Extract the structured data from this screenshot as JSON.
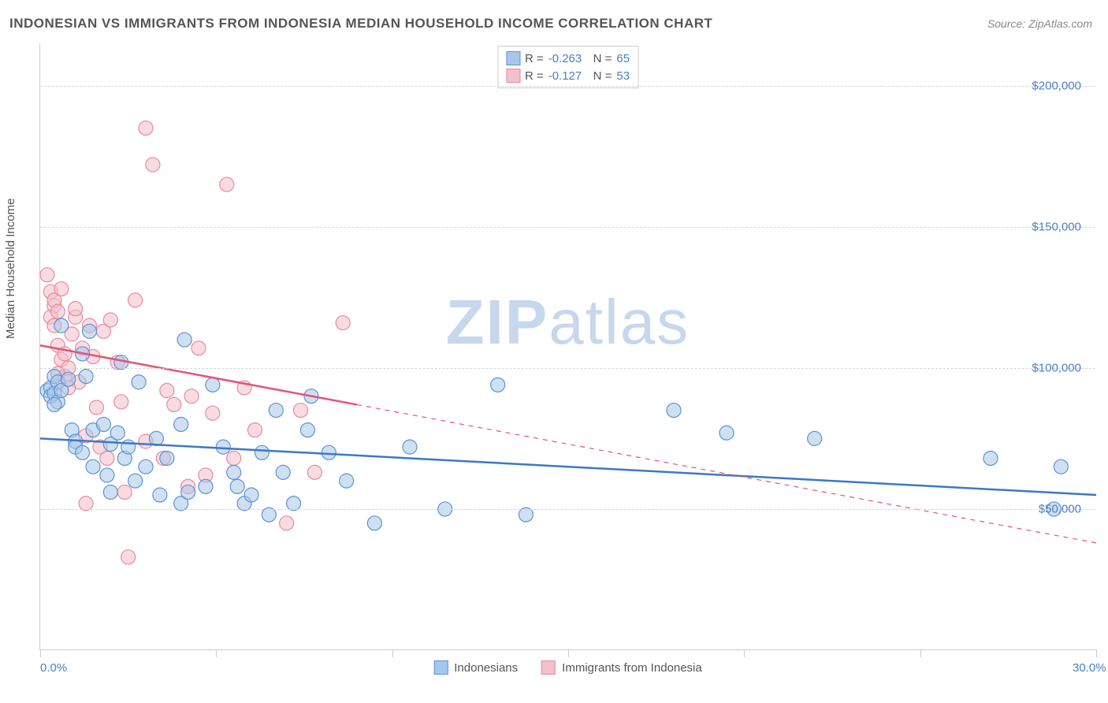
{
  "title": "INDONESIAN VS IMMIGRANTS FROM INDONESIA MEDIAN HOUSEHOLD INCOME CORRELATION CHART",
  "source": "Source: ZipAtlas.com",
  "y_axis_label": "Median Household Income",
  "watermark_a": "ZIP",
  "watermark_b": "atlas",
  "chart": {
    "type": "scatter",
    "xlim": [
      0,
      30
    ],
    "ylim": [
      0,
      215000
    ],
    "x_ticks": [
      0,
      5,
      10,
      15,
      20,
      25,
      30
    ],
    "x_tick_labels": {
      "0": "0.0%",
      "30": "30.0%"
    },
    "y_gridlines": [
      50000,
      100000,
      150000,
      200000
    ],
    "y_tick_labels": {
      "50000": "$50,000",
      "100000": "$100,000",
      "150000": "$150,000",
      "200000": "$200,000"
    },
    "background_color": "#ffffff",
    "grid_color": "#d5d5d5",
    "axis_color": "#cccccc",
    "tick_label_color": "#4a7ec9",
    "title_color": "#555555",
    "marker_radius": 9,
    "marker_stroke_width": 1.2,
    "marker_opacity": 0.55,
    "line_width": 2.5
  },
  "series": [
    {
      "name": "Indonesians",
      "label": "Indonesians",
      "fill": "#a7c7ea",
      "stroke": "#5c93d6",
      "line_color": "#3b78c9",
      "R": "-0.263",
      "N": "65",
      "trend": {
        "x1": 0,
        "y1": 75000,
        "x2": 30,
        "y2": 55000,
        "solid_until_x": 30
      },
      "points": [
        [
          0.2,
          92000
        ],
        [
          0.3,
          93000
        ],
        [
          0.4,
          97000
        ],
        [
          0.3,
          90000
        ],
        [
          0.4,
          91000
        ],
        [
          0.5,
          88000
        ],
        [
          0.5,
          95000
        ],
        [
          0.6,
          92000
        ],
        [
          0.4,
          87000
        ],
        [
          0.8,
          96000
        ],
        [
          0.6,
          115000
        ],
        [
          0.9,
          78000
        ],
        [
          1.0,
          74000
        ],
        [
          1.0,
          72000
        ],
        [
          1.2,
          70000
        ],
        [
          1.2,
          105000
        ],
        [
          1.3,
          97000
        ],
        [
          1.4,
          113000
        ],
        [
          1.5,
          65000
        ],
        [
          1.5,
          78000
        ],
        [
          1.8,
          80000
        ],
        [
          1.9,
          62000
        ],
        [
          2.0,
          73000
        ],
        [
          2.0,
          56000
        ],
        [
          2.2,
          77000
        ],
        [
          2.3,
          102000
        ],
        [
          2.4,
          68000
        ],
        [
          2.5,
          72000
        ],
        [
          2.7,
          60000
        ],
        [
          2.8,
          95000
        ],
        [
          3.0,
          65000
        ],
        [
          3.3,
          75000
        ],
        [
          3.4,
          55000
        ],
        [
          3.6,
          68000
        ],
        [
          4.0,
          80000
        ],
        [
          4.0,
          52000
        ],
        [
          4.1,
          110000
        ],
        [
          4.2,
          56000
        ],
        [
          4.7,
          58000
        ],
        [
          4.9,
          94000
        ],
        [
          5.2,
          72000
        ],
        [
          5.5,
          63000
        ],
        [
          5.6,
          58000
        ],
        [
          5.8,
          52000
        ],
        [
          6.0,
          55000
        ],
        [
          6.3,
          70000
        ],
        [
          6.5,
          48000
        ],
        [
          6.7,
          85000
        ],
        [
          6.9,
          63000
        ],
        [
          7.2,
          52000
        ],
        [
          7.6,
          78000
        ],
        [
          7.7,
          90000
        ],
        [
          8.2,
          70000
        ],
        [
          8.7,
          60000
        ],
        [
          9.5,
          45000
        ],
        [
          10.5,
          72000
        ],
        [
          11.5,
          50000
        ],
        [
          13.0,
          94000
        ],
        [
          13.8,
          48000
        ],
        [
          18.0,
          85000
        ],
        [
          19.5,
          77000
        ],
        [
          22.0,
          75000
        ],
        [
          27.0,
          68000
        ],
        [
          29.0,
          65000
        ],
        [
          28.8,
          50000
        ]
      ]
    },
    {
      "name": "Immigrants from Indonesia",
      "label": "Immigrants from Indonesia",
      "fill": "#f4c0cb",
      "stroke": "#e88aa0",
      "line_color": "#e25578",
      "R": "-0.127",
      "N": "53",
      "trend": {
        "x1": 0,
        "y1": 108000,
        "x2": 30,
        "y2": 38000,
        "solid_until_x": 9
      },
      "points": [
        [
          0.2,
          133000
        ],
        [
          0.3,
          127000
        ],
        [
          0.4,
          122000
        ],
        [
          0.3,
          118000
        ],
        [
          0.4,
          124000
        ],
        [
          0.5,
          120000
        ],
        [
          0.4,
          115000
        ],
        [
          0.5,
          108000
        ],
        [
          0.6,
          103000
        ],
        [
          0.6,
          128000
        ],
        [
          0.7,
          97000
        ],
        [
          0.7,
          105000
        ],
        [
          0.8,
          100000
        ],
        [
          0.9,
          112000
        ],
        [
          1.0,
          118000
        ],
        [
          1.0,
          121000
        ],
        [
          1.1,
          95000
        ],
        [
          1.2,
          107000
        ],
        [
          1.3,
          76000
        ],
        [
          1.4,
          115000
        ],
        [
          1.5,
          104000
        ],
        [
          1.6,
          86000
        ],
        [
          1.7,
          72000
        ],
        [
          1.8,
          113000
        ],
        [
          1.9,
          68000
        ],
        [
          2.0,
          117000
        ],
        [
          2.2,
          102000
        ],
        [
          2.3,
          88000
        ],
        [
          2.4,
          56000
        ],
        [
          2.5,
          33000
        ],
        [
          2.7,
          124000
        ],
        [
          3.0,
          74000
        ],
        [
          3.0,
          185000
        ],
        [
          3.2,
          172000
        ],
        [
          3.5,
          68000
        ],
        [
          3.6,
          92000
        ],
        [
          3.8,
          87000
        ],
        [
          4.2,
          58000
        ],
        [
          4.3,
          90000
        ],
        [
          4.5,
          107000
        ],
        [
          4.7,
          62000
        ],
        [
          4.9,
          84000
        ],
        [
          5.3,
          165000
        ],
        [
          5.5,
          68000
        ],
        [
          5.8,
          93000
        ],
        [
          6.1,
          78000
        ],
        [
          7.0,
          45000
        ],
        [
          7.4,
          85000
        ],
        [
          7.8,
          63000
        ],
        [
          8.6,
          116000
        ],
        [
          1.3,
          52000
        ],
        [
          0.5,
          98000
        ],
        [
          0.8,
          93000
        ]
      ]
    }
  ],
  "legend_bottom": [
    {
      "label": "Indonesians",
      "fill": "#a7c7ea",
      "stroke": "#5c93d6"
    },
    {
      "label": "Immigrants from Indonesia",
      "fill": "#f4c0cb",
      "stroke": "#e88aa0"
    }
  ]
}
